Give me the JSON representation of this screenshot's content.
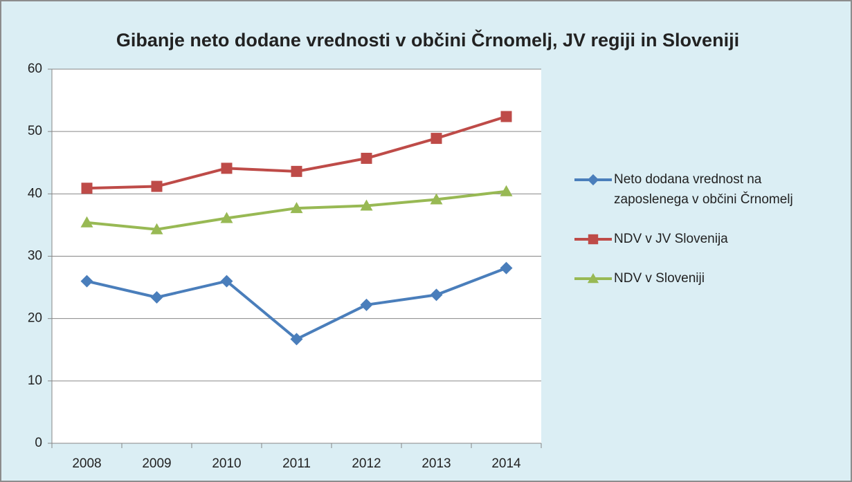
{
  "chart_data": {
    "type": "line",
    "title": "Gibanje neto dodane vrednosti v občini Črnomelj, JV regiji in Sloveniji",
    "categories": [
      "2008",
      "2009",
      "2010",
      "2011",
      "2012",
      "2013",
      "2014"
    ],
    "series": [
      {
        "name": "Neto dodana vrednost na zaposlenega v občini Črnomelj",
        "color": "#4a7ebb",
        "marker": "diamond",
        "values": [
          26.0,
          23.4,
          26.0,
          16.7,
          22.2,
          23.8,
          28.1
        ]
      },
      {
        "name": "NDV v JV Slovenija",
        "color": "#be4b48",
        "marker": "square",
        "values": [
          40.9,
          41.2,
          44.1,
          43.6,
          45.7,
          48.9,
          52.4
        ]
      },
      {
        "name": "NDV v Sloveniji",
        "color": "#98b954",
        "marker": "triangle",
        "values": [
          35.4,
          34.3,
          36.1,
          37.7,
          38.1,
          39.1,
          40.4
        ]
      }
    ],
    "ylim": [
      0,
      60
    ],
    "yticks": [
      0,
      10,
      20,
      30,
      40,
      50,
      60
    ],
    "grid": true,
    "legend": "right"
  }
}
